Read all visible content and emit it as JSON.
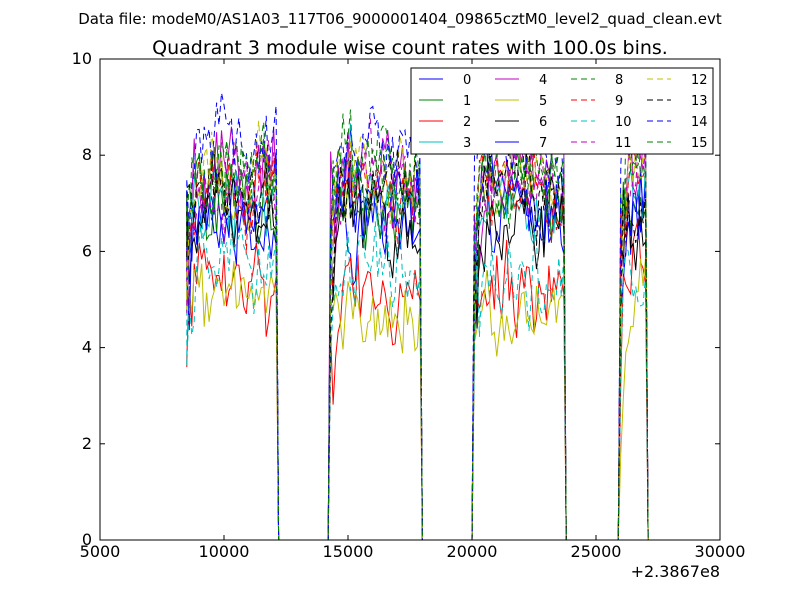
{
  "header": {
    "file_label": "Data file: modeM0/AS1A03_117T06_9000001404_09865cztM0_level2_quad_clean.evt"
  },
  "chart_data": {
    "type": "line",
    "title": "Quadrant 3 module wise count rates with 100.0s bins.",
    "xlabel": "",
    "ylabel": "",
    "x_offset_label": "+2.3867e8",
    "xlim": [
      5000,
      30000
    ],
    "ylim": [
      0,
      10
    ],
    "x_ticks": [
      5000,
      10000,
      15000,
      20000,
      25000,
      30000
    ],
    "y_ticks": [
      0,
      2,
      4,
      6,
      8,
      10
    ],
    "grid": false,
    "legend_position": "top-right",
    "legend_columns": 4,
    "bin_seconds": 100,
    "segments": [
      {
        "start": 8500,
        "end": 12100,
        "level": "high"
      },
      {
        "start": 14300,
        "end": 17900,
        "level": "high"
      },
      {
        "start": 20100,
        "end": 23700,
        "level": "high"
      },
      {
        "start": 26000,
        "end": 27000,
        "level": "high"
      }
    ],
    "series": [
      {
        "name": "0",
        "color": "#0000ff",
        "dash": "solid",
        "mean": 6.7
      },
      {
        "name": "1",
        "color": "#008000",
        "dash": "solid",
        "mean": 7.1
      },
      {
        "name": "2",
        "color": "#ff0000",
        "dash": "solid",
        "mean": 5.3
      },
      {
        "name": "3",
        "color": "#00bfbf",
        "dash": "solid",
        "mean": 7.3
      },
      {
        "name": "4",
        "color": "#bf00bf",
        "dash": "solid",
        "mean": 7.6
      },
      {
        "name": "5",
        "color": "#bfbf00",
        "dash": "solid",
        "mean": 4.8
      },
      {
        "name": "6",
        "color": "#000000",
        "dash": "solid",
        "mean": 6.6
      },
      {
        "name": "7",
        "color": "#0000ff",
        "dash": "solid",
        "mean": 7.0
      },
      {
        "name": "8",
        "color": "#008000",
        "dash": "dashed",
        "mean": 7.8
      },
      {
        "name": "9",
        "color": "#ff0000",
        "dash": "dashed",
        "mean": 7.2
      },
      {
        "name": "10",
        "color": "#00bfbf",
        "dash": "dashed",
        "mean": 5.6
      },
      {
        "name": "11",
        "color": "#bf00bf",
        "dash": "dashed",
        "mean": 7.4
      },
      {
        "name": "12",
        "color": "#bfbf00",
        "dash": "dashed",
        "mean": 7.5
      },
      {
        "name": "13",
        "color": "#000000",
        "dash": "dashed",
        "mean": 7.1
      },
      {
        "name": "14",
        "color": "#0000ff",
        "dash": "dashed",
        "mean": 8.3
      },
      {
        "name": "15",
        "color": "#008000",
        "dash": "dashed",
        "mean": 7.7
      }
    ]
  }
}
